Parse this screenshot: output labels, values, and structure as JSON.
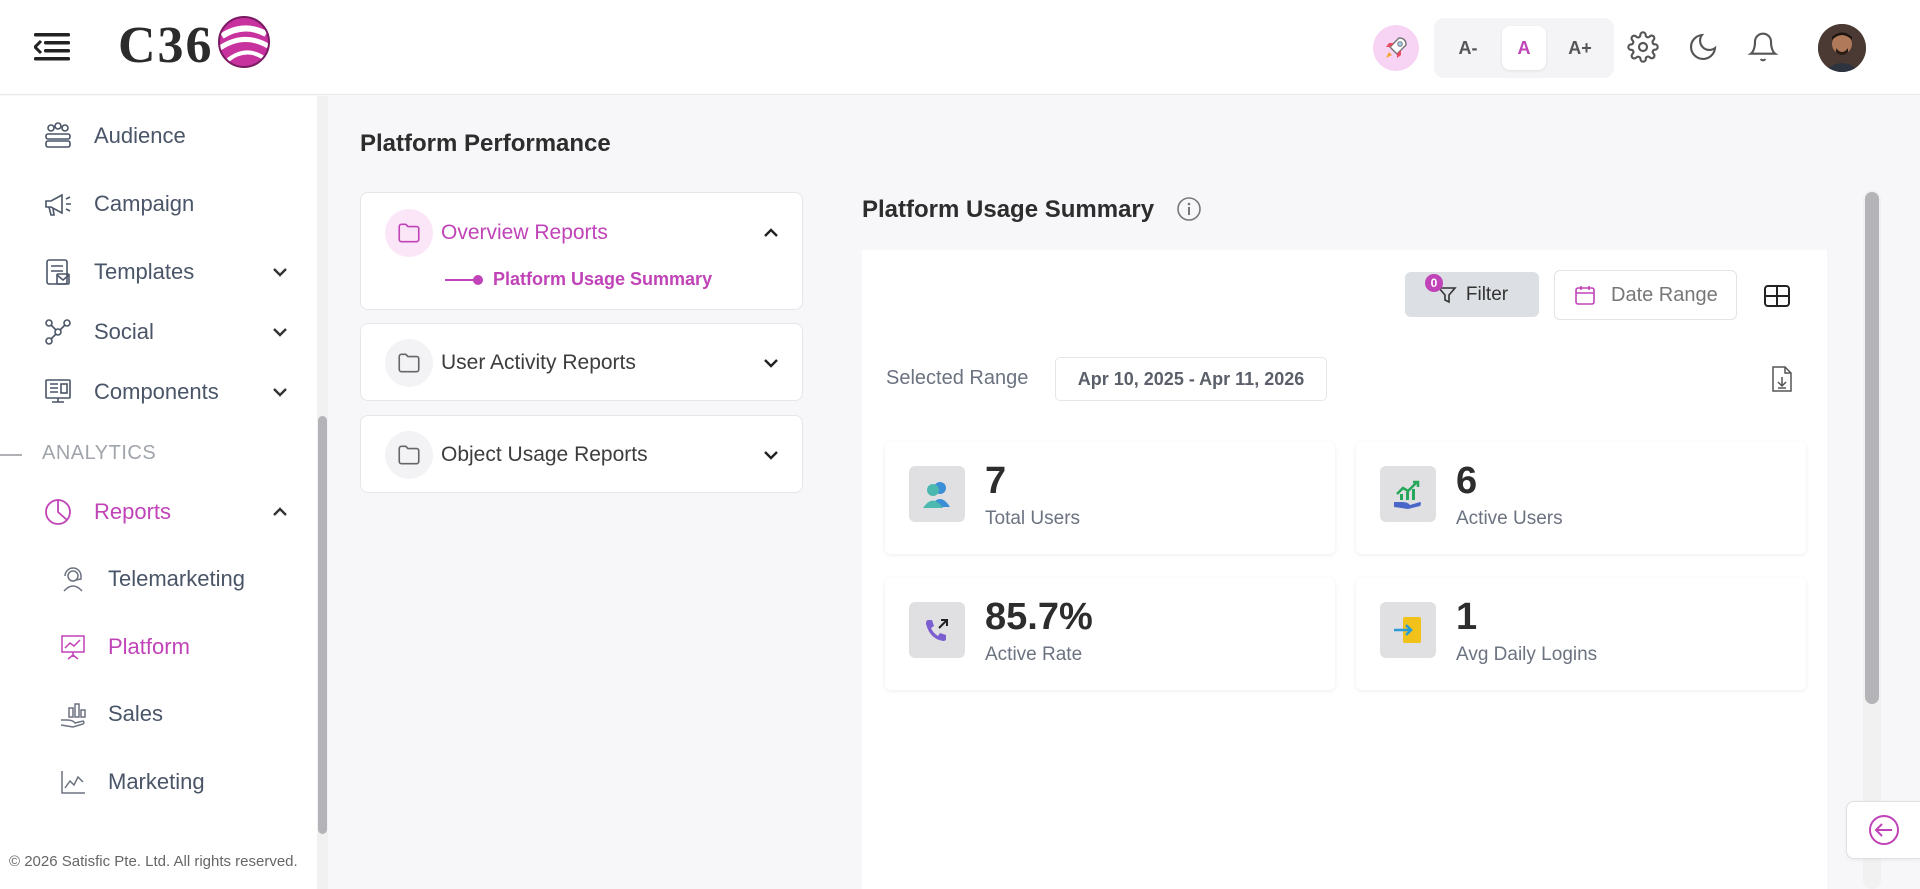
{
  "header": {
    "logo_text": "C36",
    "font_size": {
      "decrease": "A-",
      "normal": "A",
      "increase": "A+"
    },
    "icons": [
      "hamburger-icon",
      "rocket-icon",
      "gear-icon",
      "moon-icon",
      "bell-icon"
    ]
  },
  "sidebar": {
    "items": [
      {
        "label": "Audience",
        "icon": "audience-icon"
      },
      {
        "label": "Campaign",
        "icon": "megaphone-icon"
      },
      {
        "label": "Templates",
        "icon": "templates-icon",
        "expandable": true
      },
      {
        "label": "Social",
        "icon": "social-icon",
        "expandable": true
      },
      {
        "label": "Components",
        "icon": "components-icon",
        "expandable": true
      }
    ],
    "section_label": "ANALYTICS",
    "reports": {
      "label": "Reports",
      "expanded": true
    },
    "sub_items": [
      {
        "label": "Telemarketing",
        "icon": "headset-icon"
      },
      {
        "label": "Platform",
        "icon": "presentation-icon",
        "active": true
      },
      {
        "label": "Sales",
        "icon": "sales-icon"
      },
      {
        "label": "Marketing",
        "icon": "line-chart-icon"
      }
    ],
    "copyright": "© 2026 Satisfic Pte. Ltd. All rights reserved."
  },
  "main": {
    "page_title": "Platform Performance",
    "report_groups": [
      {
        "title": "Overview Reports",
        "expanded": true,
        "sub": "Platform Usage Summary"
      },
      {
        "title": "User Activity Reports",
        "expanded": false
      },
      {
        "title": "Object Usage Reports",
        "expanded": false
      }
    ],
    "panel_title": "Platform Usage Summary",
    "filter": {
      "label": "Filter",
      "badge": "0"
    },
    "date_range": {
      "label": "Date Range"
    },
    "selected_range": {
      "label": "Selected Range",
      "value": "Apr 10, 2025 - Apr 11, 2026"
    },
    "stats": [
      {
        "value": "7",
        "label": "Total Users",
        "icon": "users-icon"
      },
      {
        "value": "6",
        "label": "Active Users",
        "icon": "growth-hand-icon"
      },
      {
        "value": "85.7%",
        "label": "Active Rate",
        "icon": "phone-outgoing-icon"
      },
      {
        "value": "1",
        "label": "Avg Daily Logins",
        "icon": "login-door-icon"
      }
    ]
  },
  "colors": {
    "accent": "#c043b8",
    "text": "#4a5568",
    "muted": "#6b7280"
  }
}
